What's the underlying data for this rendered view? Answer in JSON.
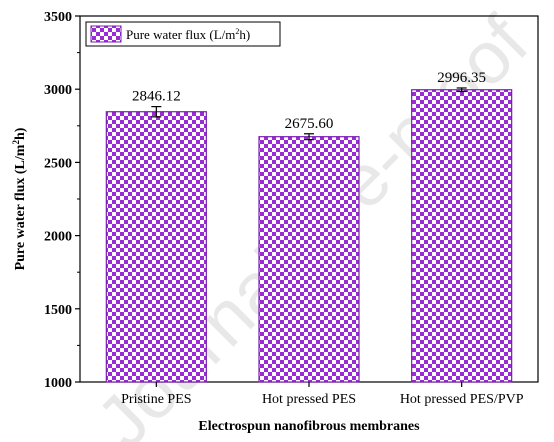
{
  "watermark": "Journal Pre-proof",
  "chart_data": {
    "type": "bar",
    "xlabel": "Electrospun nanofibrous membranes",
    "ylabel": "Pure water flux (L/m²h)",
    "ylabel_parts": {
      "base": "Pure water flux (L/m",
      "sup": "2",
      "tail": "h)"
    },
    "ylim": [
      1000,
      3500
    ],
    "yticks": [
      "1000",
      "1500",
      "2000",
      "2500",
      "3000",
      "3500"
    ],
    "categories": [
      "Pristine PES",
      "Hot pressed PES",
      "Hot pressed PES/PVP"
    ],
    "series": [
      {
        "name": "Pure water flux (L/m²h)",
        "name_parts": {
          "base": "Pure water flux (L/m",
          "sup": "2",
          "tail": "h)"
        },
        "values": [
          2846.12,
          2675.6,
          2996.35
        ],
        "value_labels": [
          "2846.12",
          "2675.60",
          "2996.35"
        ],
        "errors": [
          35,
          20,
          12
        ]
      }
    ],
    "bar_pattern": "checkerboard",
    "bar_color": "#9b2bd6",
    "legend_position": "top-left",
    "grid": false
  }
}
